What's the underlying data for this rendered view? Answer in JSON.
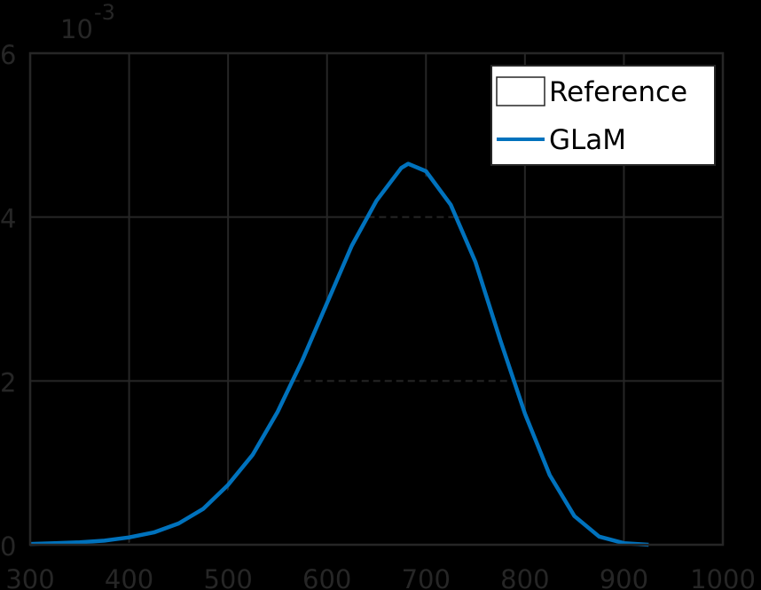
{
  "chart_data": {
    "type": "line",
    "title": "",
    "xlabel": "",
    "ylabel": "",
    "y_exponent_label": {
      "base": "10",
      "exp": "-3"
    },
    "xlim": [
      300,
      1000
    ],
    "ylim": [
      0,
      6
    ],
    "x_ticks": [
      300,
      400,
      500,
      600,
      700,
      800,
      900,
      1000
    ],
    "y_ticks": [
      0,
      2,
      4,
      6
    ],
    "grid": true,
    "legend_position": "northeast",
    "legend": [
      {
        "label": "Reference",
        "style": "patch",
        "color": "#000000"
      },
      {
        "label": "GLaM",
        "style": "line",
        "color": "#0072BD"
      }
    ],
    "series": [
      {
        "name": "GLaM",
        "color": "#0072BD",
        "x": [
          300,
          325,
          350,
          375,
          400,
          425,
          450,
          475,
          500,
          525,
          550,
          575,
          600,
          625,
          650,
          675,
          682,
          700,
          725,
          750,
          775,
          800,
          825,
          850,
          875,
          900,
          925
        ],
        "y": [
          0.01,
          0.02,
          0.03,
          0.05,
          0.09,
          0.15,
          0.26,
          0.44,
          0.73,
          1.1,
          1.62,
          2.25,
          2.95,
          3.65,
          4.2,
          4.6,
          4.65,
          4.56,
          4.15,
          3.45,
          2.5,
          1.6,
          0.85,
          0.35,
          0.1,
          0.02,
          0.0
        ]
      },
      {
        "name": "Reference",
        "color": "#000000",
        "style": "histogram (black fill, hidden against black background)"
      }
    ]
  }
}
